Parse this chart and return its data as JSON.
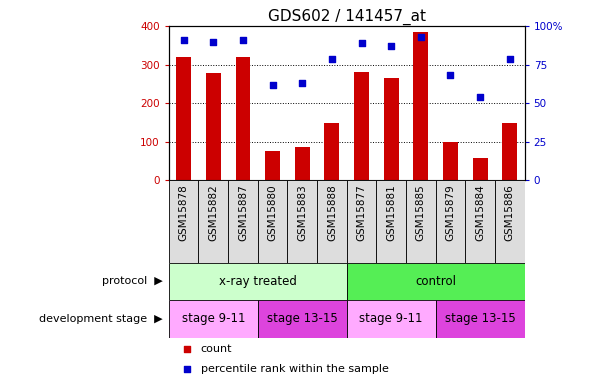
{
  "title": "GDS602 / 141457_at",
  "samples": [
    "GSM15878",
    "GSM15882",
    "GSM15887",
    "GSM15880",
    "GSM15883",
    "GSM15888",
    "GSM15877",
    "GSM15881",
    "GSM15885",
    "GSM15879",
    "GSM15884",
    "GSM15886"
  ],
  "counts": [
    320,
    278,
    320,
    75,
    85,
    148,
    282,
    265,
    385,
    100,
    58,
    148
  ],
  "percentiles": [
    91,
    90,
    91,
    62,
    63,
    79,
    89,
    87,
    93,
    68,
    54,
    79
  ],
  "bar_color": "#cc0000",
  "dot_color": "#0000cc",
  "left_ylim": [
    0,
    400
  ],
  "right_ylim": [
    0,
    100
  ],
  "left_yticks": [
    0,
    100,
    200,
    300,
    400
  ],
  "right_yticks": [
    0,
    25,
    50,
    75,
    100
  ],
  "right_yticklabels": [
    "0",
    "25",
    "50",
    "75",
    "100%"
  ],
  "protocol_labels": [
    "x-ray treated",
    "control"
  ],
  "protocol_ranges": [
    [
      0,
      6
    ],
    [
      6,
      12
    ]
  ],
  "protocol_color_light": "#ccffcc",
  "protocol_color_medium": "#55ee55",
  "dev_stage_colors": [
    "#ffaaff",
    "#dd44dd",
    "#ffaaff",
    "#dd44dd"
  ],
  "dev_stage_labels": [
    "stage 9-11",
    "stage 13-15",
    "stage 9-11",
    "stage 13-15"
  ],
  "dev_stage_ranges": [
    [
      0,
      3
    ],
    [
      3,
      6
    ],
    [
      6,
      9
    ],
    [
      9,
      12
    ]
  ],
  "legend_count_color": "#cc0000",
  "legend_pct_color": "#0000cc",
  "tick_label_fontsize": 7.5,
  "title_fontsize": 11,
  "sample_box_color": "#dddddd"
}
